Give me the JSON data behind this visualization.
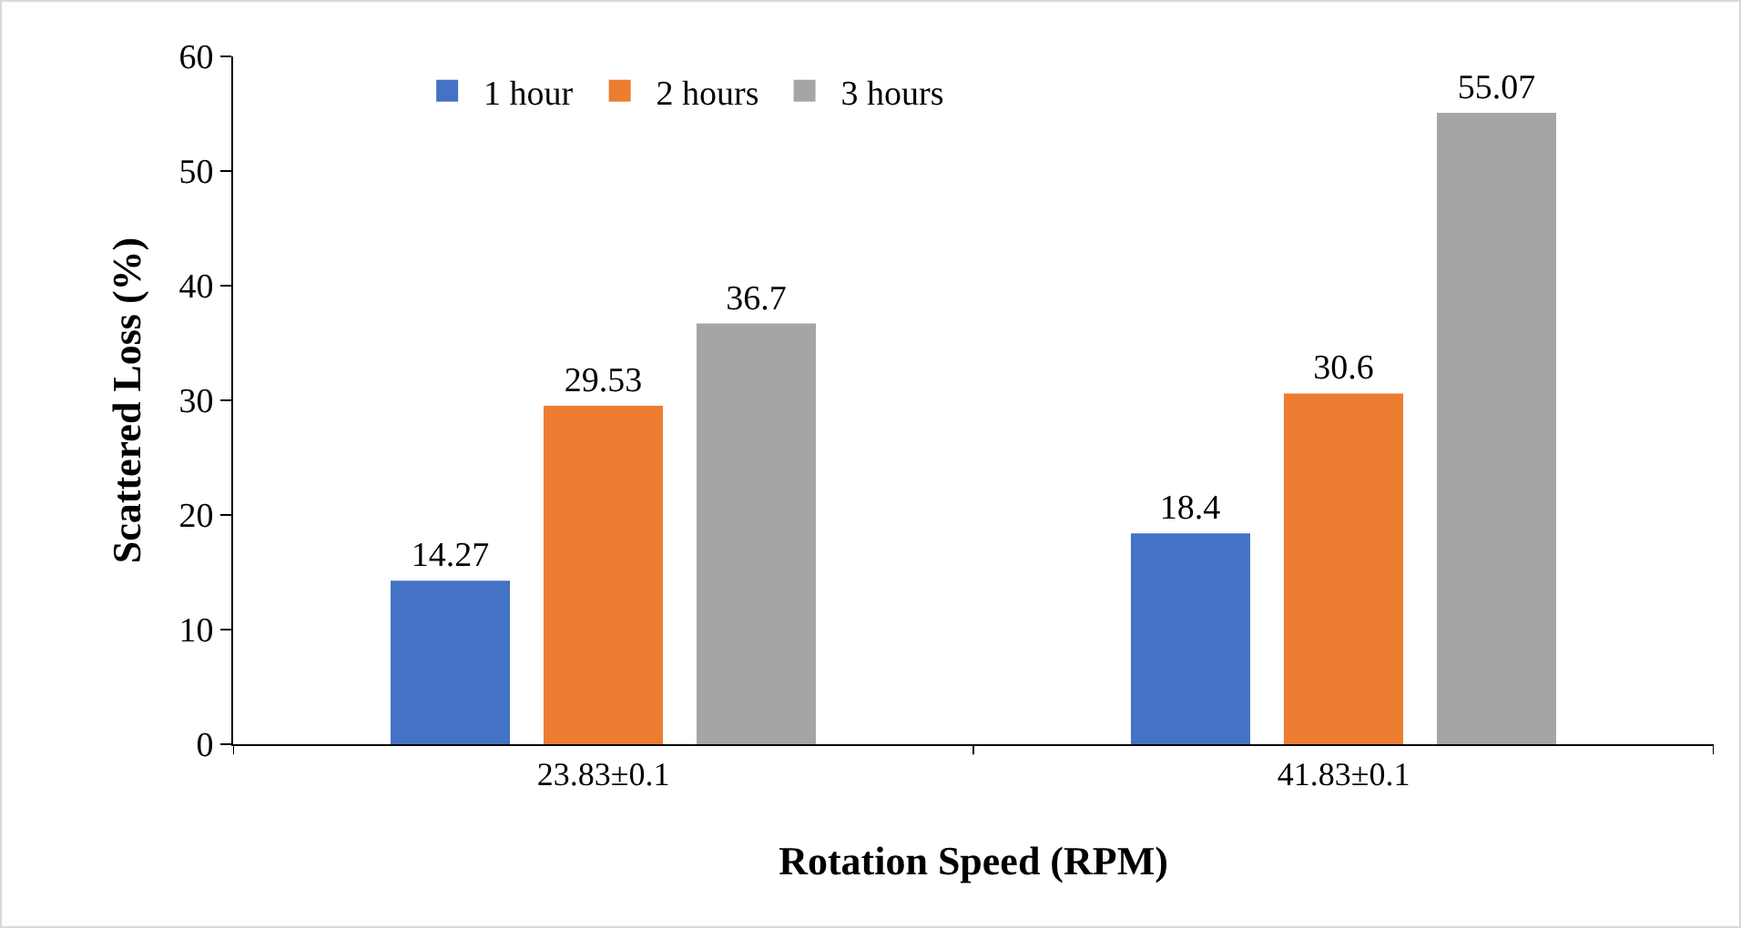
{
  "chart_data": {
    "type": "bar",
    "xlabel": "Rotation Speed (RPM)",
    "ylabel": "Scattered Loss (%)",
    "categories": [
      "23.83±0.1",
      "41.83±0.1"
    ],
    "series": [
      {
        "name": "1 hour",
        "color": "#4472c4",
        "values": [
          14.27,
          18.4
        ]
      },
      {
        "name": "2 hours",
        "color": "#ed7d31",
        "values": [
          29.53,
          30.6
        ]
      },
      {
        "name": "3 hours",
        "color": "#a5a5a5",
        "values": [
          36.7,
          55.07
        ]
      }
    ],
    "ylim": [
      0,
      60
    ],
    "yticks": [
      0,
      10,
      20,
      30,
      40,
      50,
      60
    ],
    "grid": false,
    "legend": "top left",
    "data_labels": true
  }
}
